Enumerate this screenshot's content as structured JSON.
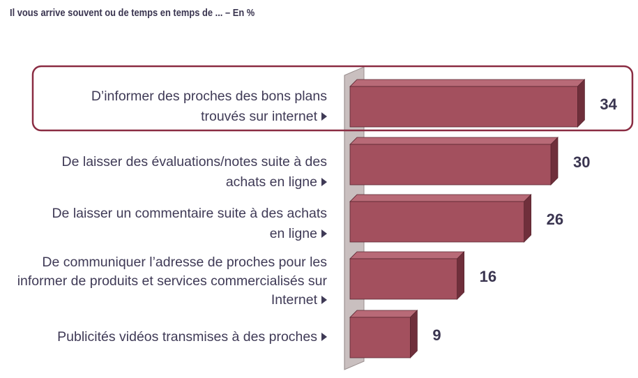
{
  "title": "Il vous arrive souvent ou de temps en temps de ... – En %",
  "colors": {
    "bar_front": "#a3505e",
    "bar_top": "#b86a77",
    "bar_side": "#6f2f3b",
    "wall": "#c9bfbf",
    "highlight": "#8a2c42",
    "text": "#3f3a56"
  },
  "chart_data": {
    "type": "bar",
    "orientation": "horizontal",
    "categories": [
      [
        "D’informer des proches des bons plans",
        "trouvés sur internet"
      ],
      [
        "De laisser des évaluations/notes suite à des",
        "achats en ligne"
      ],
      [
        "De laisser un commentaire suite à des achats",
        "en ligne"
      ],
      [
        "De communiquer l’adresse de proches pour les",
        "informer de produits et services commercialisés sur",
        "Internet"
      ],
      [
        "Publicités vidéos transmises à des proches"
      ]
    ],
    "values": [
      34,
      30,
      26,
      16,
      9
    ],
    "highlighted_index": 0,
    "title": "Il vous arrive souvent ou de temps en temps de ... – En %",
    "xlabel": "",
    "ylabel": "",
    "unit": "%"
  }
}
